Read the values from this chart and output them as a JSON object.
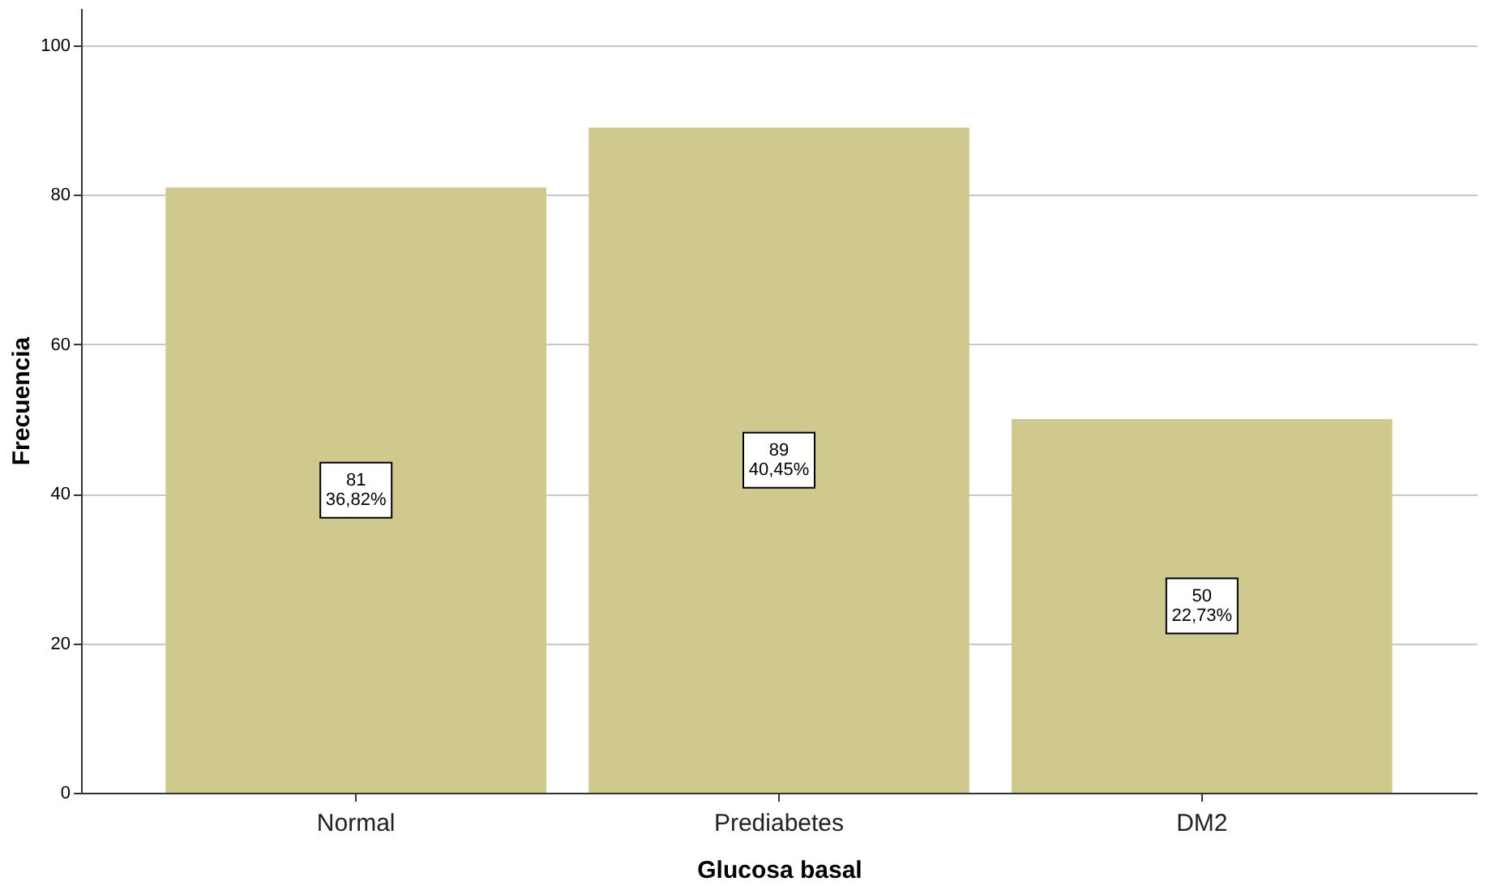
{
  "chart_data": {
    "type": "bar",
    "xlabel": "Glucosa basal",
    "ylabel": "Frecuencia",
    "categories": [
      "Normal",
      "Prediabetes",
      "DM2"
    ],
    "values": [
      81,
      89,
      50
    ],
    "value_labels": [
      "81\n36,82%",
      "89\n40,45%",
      "50\n22,73%"
    ],
    "color": "#d0c98d",
    "ylim": [
      0,
      105
    ],
    "yticks": [
      0,
      20,
      40,
      60,
      80,
      100
    ],
    "grid": "y"
  }
}
